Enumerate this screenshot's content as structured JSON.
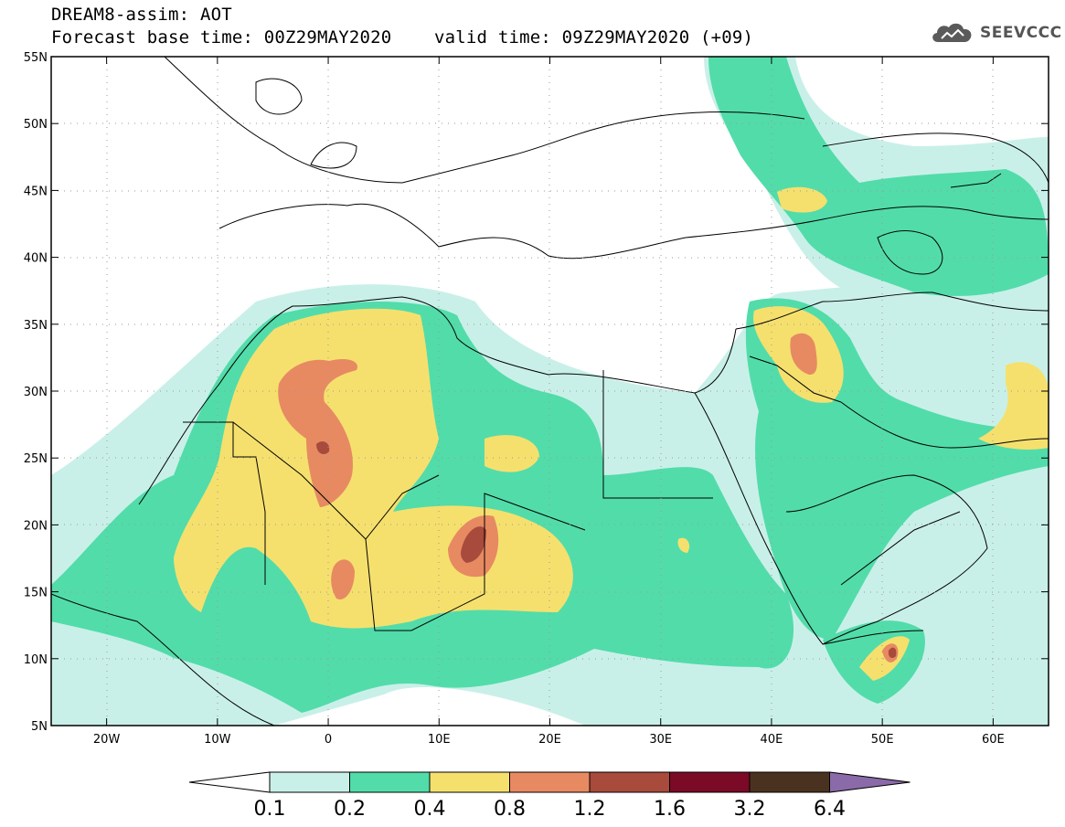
{
  "header": {
    "title_line1": "DREAM8-assim: AOT",
    "title_line2": "Forecast base time: 00Z29MAY2020    valid time: 09Z29MAY2020 (+09)"
  },
  "logo": {
    "text": "SEEVCCC",
    "icon": "cloud-icon"
  },
  "map": {
    "projection": "lat-lon",
    "lon_range": [
      -25,
      65
    ],
    "lat_range": [
      5,
      55
    ],
    "lon_ticks": [
      {
        "value": -20,
        "label": "20W"
      },
      {
        "value": -10,
        "label": "10W"
      },
      {
        "value": 0,
        "label": "0"
      },
      {
        "value": 10,
        "label": "10E"
      },
      {
        "value": 20,
        "label": "20E"
      },
      {
        "value": 30,
        "label": "30E"
      },
      {
        "value": 40,
        "label": "40E"
      },
      {
        "value": 50,
        "label": "50E"
      },
      {
        "value": 60,
        "label": "60E"
      }
    ],
    "lat_ticks": [
      {
        "value": 55,
        "label": "55N"
      },
      {
        "value": 50,
        "label": "50N"
      },
      {
        "value": 45,
        "label": "45N"
      },
      {
        "value": 40,
        "label": "40N"
      },
      {
        "value": 35,
        "label": "35N"
      },
      {
        "value": 30,
        "label": "30N"
      },
      {
        "value": 25,
        "label": "25N"
      },
      {
        "value": 20,
        "label": "20N"
      },
      {
        "value": 15,
        "label": "15N"
      },
      {
        "value": 10,
        "label": "10N"
      },
      {
        "value": 5,
        "label": "5N"
      }
    ],
    "grid": "dotted"
  },
  "colorbar": {
    "levels": [
      "0.1",
      "0.2",
      "0.4",
      "0.8",
      "1.2",
      "1.6",
      "3.2",
      "6.4"
    ],
    "colors": [
      "#ffffff",
      "#c9f0e8",
      "#52dcaa",
      "#f5e06e",
      "#e78a62",
      "#a84a3c",
      "#7a0a26",
      "#4a3220",
      "#8a6aa8"
    ]
  }
}
